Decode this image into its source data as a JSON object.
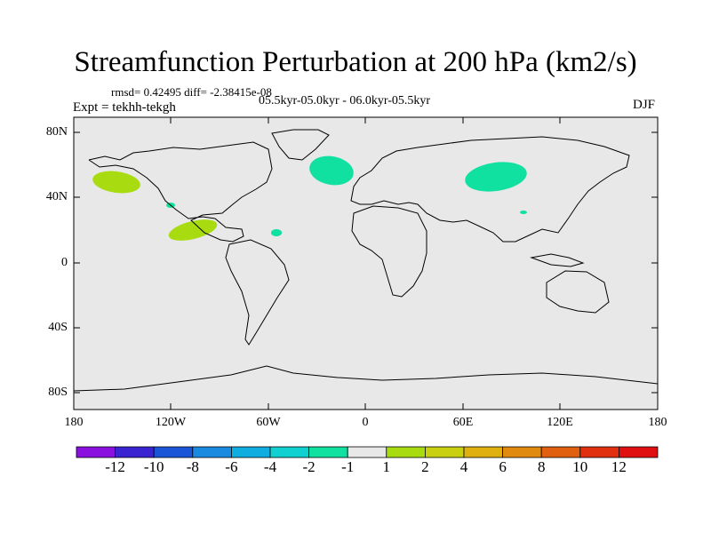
{
  "title": "Streamfunction Perturbation at 200 hPa (km2/s)",
  "stats": "rmsd= 0.42495 diff= -2.38415e-08",
  "period": "05.5kyr-05.0kyr - 06.0kyr-05.5kyr",
  "experiment": "Expt = tekhh-tekgh",
  "season": "DJF",
  "lat_labels": [
    "80N",
    "40N",
    "0",
    "40S",
    "80S"
  ],
  "lon_labels": [
    "180",
    "120W",
    "60W",
    "0",
    "60E",
    "120E",
    "180"
  ],
  "colorbar": {
    "labels": [
      "-12",
      "-10",
      "-8",
      "-6",
      "-4",
      "-2",
      "-1",
      "1",
      "2",
      "4",
      "6",
      "8",
      "10",
      "12"
    ],
    "colors": [
      "#8a10e0",
      "#3a23d0",
      "#1a55d8",
      "#1a8ae0",
      "#10aee0",
      "#10d0d0",
      "#10e0a0",
      "#e8e8e8",
      "#a8dc10",
      "#c8d010",
      "#e0b010",
      "#e08a10",
      "#e06010",
      "#e03010",
      "#e01010"
    ]
  },
  "colors": {
    "ocean": "#e8e8e8",
    "positive_small": "#a8dc10",
    "negative_small": "#10e0a0"
  }
}
